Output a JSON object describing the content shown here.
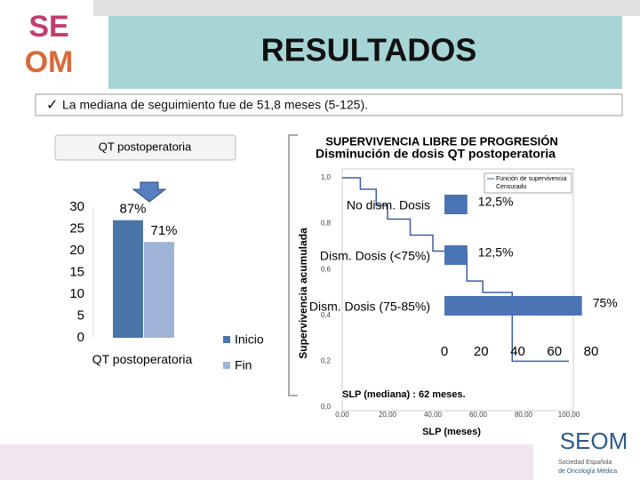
{
  "logo": {
    "top": "SE",
    "bottom": "OM"
  },
  "header": {
    "title": "RESULTADOS"
  },
  "bullet": "La mediana de seguimiento fue de 51,8 meses (5-125).",
  "chart_data": [
    {
      "type": "bar",
      "title": "QT postoperatoria",
      "categories": [
        "QT postoperatoria"
      ],
      "series": [
        {
          "name": "Inicio",
          "color": "#4a74a8",
          "values": [
            27
          ],
          "value_labels": [
            "87%"
          ]
        },
        {
          "name": "Fin",
          "color": "#9fb3d6",
          "values": [
            22
          ],
          "value_labels": [
            "71%"
          ]
        }
      ],
      "ylim": [
        0,
        30
      ],
      "yticks": [
        0,
        5,
        10,
        15,
        20,
        25,
        30
      ]
    },
    {
      "type": "line",
      "title": "SUPERVIVENCIA LIBRE DE PROGRESIÓN",
      "x_label": "SLP (meses)",
      "y_label": "Supervivencia acumulada",
      "annotation": "SLP (mediana) : 62 meses.",
      "x": [
        0,
        8,
        15,
        20,
        30,
        40,
        55,
        62,
        75,
        100
      ],
      "series": [
        {
          "name": "Función de supervivencia",
          "color": "#3a5fa8",
          "values": [
            1.0,
            0.95,
            0.88,
            0.82,
            0.75,
            0.68,
            0.55,
            0.5,
            0.2,
            0.2
          ]
        }
      ],
      "censored_label": "Censurado",
      "xlim": [
        0,
        100
      ],
      "ylim": [
        0,
        1
      ],
      "xticks": [
        {
          "value": 0,
          "label": "0,00"
        },
        {
          "value": 20,
          "label": "20,00"
        },
        {
          "value": 40,
          "label": "40,00"
        },
        {
          "value": 60,
          "label": "60,00"
        },
        {
          "value": 80,
          "label": "80,00"
        },
        {
          "value": 100,
          "label": "100,00"
        }
      ],
      "yticks": [
        {
          "value": 0,
          "label": "0,0"
        },
        {
          "value": 0.2,
          "label": "0,2"
        },
        {
          "value": 0.4,
          "label": "0,4"
        },
        {
          "value": 0.6,
          "label": "0,6"
        },
        {
          "value": 0.8,
          "label": "0,8"
        },
        {
          "value": 1,
          "label": "1,0"
        }
      ]
    },
    {
      "type": "hbar",
      "title": "Disminución de dosis QT postoperatoria",
      "categories": [
        "No dism. Dosis",
        "Dism. Dosis (<75%)",
        "Dism. Dosis (75-85%)"
      ],
      "values": [
        12.5,
        12.5,
        75
      ],
      "value_labels": [
        "12,5%",
        "12,5%",
        "75%"
      ],
      "color": "#4a74b4",
      "xlim": [
        0,
        80
      ],
      "xticks": [
        0,
        20,
        40,
        60,
        80
      ]
    }
  ],
  "footer_logo": {
    "name": "SEOM",
    "line1": "Sociedad Española",
    "line2": "de Oncología Médica"
  }
}
